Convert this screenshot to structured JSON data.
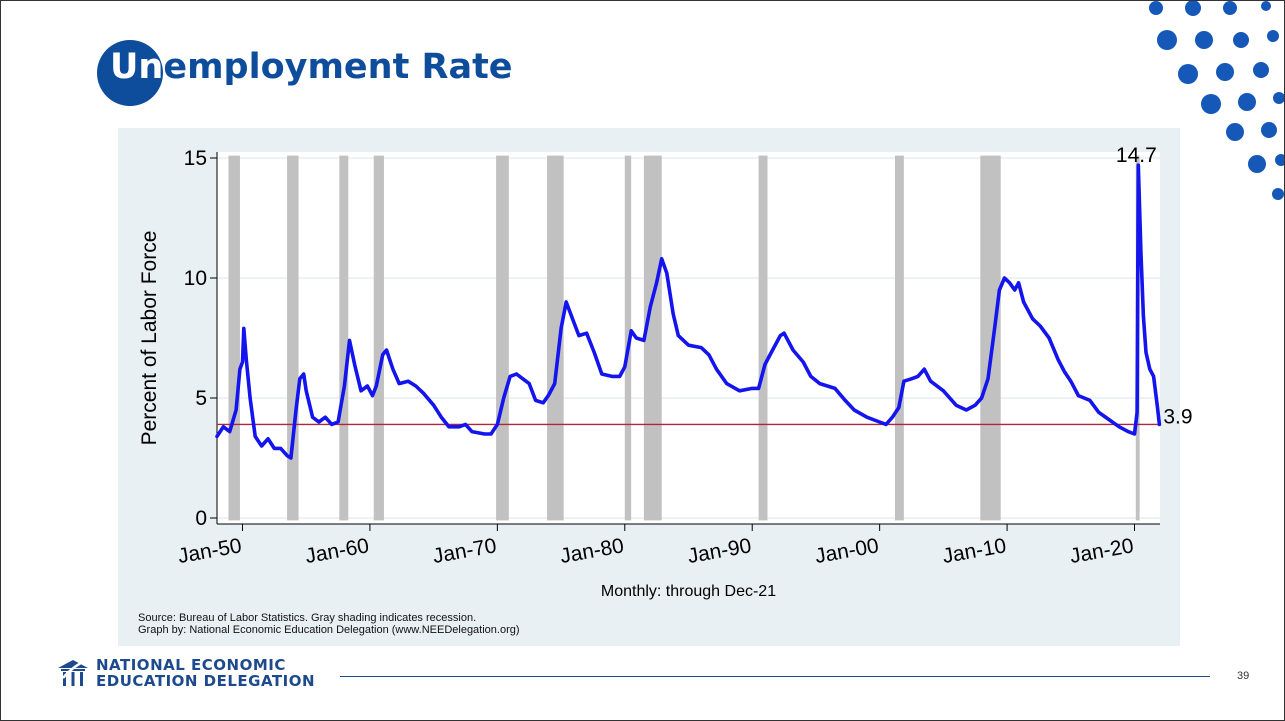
{
  "slide": {
    "title_first": "Un",
    "title_rest": "employment Rate",
    "page_number": "39",
    "source_line1": "Source: Bureau of Labor Statistics. Gray shading indicates recession.",
    "source_line2": "Graph by: National Economic Education Delegation (www.NEEDelegation.org)",
    "logo_line1": "NATIONAL ECONOMIC",
    "logo_line2": "EDUCATION DELEGATION",
    "colors": {
      "brand": "#0e4d9c",
      "dots": "#1558b8"
    }
  },
  "chart_data": {
    "type": "line",
    "ylabel": "Percent of Labor Force",
    "xlabel": "Monthly: through Dec-21",
    "ylim": [
      0,
      15
    ],
    "yticks": [
      0,
      5,
      10,
      15
    ],
    "xticks": [
      "Jan-50",
      "Jan-60",
      "Jan-70",
      "Jan-80",
      "Jan-90",
      "Jan-00",
      "Jan-10",
      "Jan-20"
    ],
    "xrange": [
      1948.0,
      2022.0
    ],
    "grid": true,
    "reference_line": {
      "value": 3.9,
      "color": "#b0243c"
    },
    "annotations": [
      {
        "text": "14.7",
        "x": 2020.3,
        "y": 14.7
      },
      {
        "text": "3.9",
        "x": 2021.95,
        "y": 3.9
      }
    ],
    "recessions": [
      [
        1948.9,
        1949.8
      ],
      [
        1953.5,
        1954.4
      ],
      [
        1957.6,
        1958.3
      ],
      [
        1960.3,
        1961.1
      ],
      [
        1969.9,
        1970.9
      ],
      [
        1973.9,
        1975.2
      ],
      [
        1980.0,
        1980.5
      ],
      [
        1981.5,
        1982.9
      ],
      [
        1990.5,
        1991.2
      ],
      [
        2001.2,
        2001.9
      ],
      [
        2007.9,
        2009.5
      ],
      [
        2020.1,
        2020.4
      ]
    ],
    "series": [
      {
        "color": "#1414ee",
        "points": [
          [
            1948.0,
            3.4
          ],
          [
            1948.5,
            3.8
          ],
          [
            1949.0,
            3.6
          ],
          [
            1949.5,
            4.5
          ],
          [
            1949.8,
            6.2
          ],
          [
            1950.0,
            6.5
          ],
          [
            1950.1,
            7.9
          ],
          [
            1950.3,
            6.6
          ],
          [
            1950.6,
            5.0
          ],
          [
            1951.0,
            3.4
          ],
          [
            1951.5,
            3.0
          ],
          [
            1952.0,
            3.3
          ],
          [
            1952.5,
            2.9
          ],
          [
            1953.0,
            2.9
          ],
          [
            1953.5,
            2.6
          ],
          [
            1953.8,
            2.5
          ],
          [
            1954.2,
            4.5
          ],
          [
            1954.5,
            5.8
          ],
          [
            1954.8,
            6.0
          ],
          [
            1955.0,
            5.3
          ],
          [
            1955.5,
            4.2
          ],
          [
            1956.0,
            4.0
          ],
          [
            1956.5,
            4.2
          ],
          [
            1957.0,
            3.9
          ],
          [
            1957.5,
            4.0
          ],
          [
            1958.0,
            5.5
          ],
          [
            1958.4,
            7.4
          ],
          [
            1958.8,
            6.4
          ],
          [
            1959.3,
            5.3
          ],
          [
            1959.8,
            5.5
          ],
          [
            1960.2,
            5.1
          ],
          [
            1960.5,
            5.5
          ],
          [
            1961.0,
            6.8
          ],
          [
            1961.3,
            7.0
          ],
          [
            1961.8,
            6.2
          ],
          [
            1962.3,
            5.6
          ],
          [
            1963.0,
            5.7
          ],
          [
            1963.6,
            5.5
          ],
          [
            1964.2,
            5.2
          ],
          [
            1965.0,
            4.7
          ],
          [
            1965.6,
            4.2
          ],
          [
            1966.2,
            3.8
          ],
          [
            1967.0,
            3.8
          ],
          [
            1967.5,
            3.9
          ],
          [
            1968.0,
            3.6
          ],
          [
            1969.0,
            3.5
          ],
          [
            1969.5,
            3.5
          ],
          [
            1970.0,
            3.9
          ],
          [
            1970.5,
            5.0
          ],
          [
            1971.0,
            5.9
          ],
          [
            1971.5,
            6.0
          ],
          [
            1972.0,
            5.8
          ],
          [
            1972.5,
            5.6
          ],
          [
            1973.0,
            4.9
          ],
          [
            1973.6,
            4.8
          ],
          [
            1974.0,
            5.1
          ],
          [
            1974.5,
            5.6
          ],
          [
            1975.0,
            7.9
          ],
          [
            1975.4,
            9.0
          ],
          [
            1975.9,
            8.3
          ],
          [
            1976.4,
            7.6
          ],
          [
            1977.0,
            7.7
          ],
          [
            1977.6,
            6.9
          ],
          [
            1978.2,
            6.0
          ],
          [
            1979.0,
            5.9
          ],
          [
            1979.6,
            5.9
          ],
          [
            1980.0,
            6.3
          ],
          [
            1980.5,
            7.8
          ],
          [
            1980.9,
            7.5
          ],
          [
            1981.5,
            7.4
          ],
          [
            1982.0,
            8.8
          ],
          [
            1982.5,
            9.8
          ],
          [
            1982.9,
            10.8
          ],
          [
            1983.3,
            10.2
          ],
          [
            1983.8,
            8.5
          ],
          [
            1984.2,
            7.6
          ],
          [
            1985.0,
            7.2
          ],
          [
            1986.0,
            7.1
          ],
          [
            1986.6,
            6.8
          ],
          [
            1987.2,
            6.2
          ],
          [
            1988.0,
            5.6
          ],
          [
            1989.0,
            5.3
          ],
          [
            1990.0,
            5.4
          ],
          [
            1990.5,
            5.4
          ],
          [
            1991.0,
            6.4
          ],
          [
            1991.6,
            7.0
          ],
          [
            1992.2,
            7.6
          ],
          [
            1992.5,
            7.7
          ],
          [
            1993.2,
            7.0
          ],
          [
            1994.0,
            6.5
          ],
          [
            1994.6,
            5.9
          ],
          [
            1995.3,
            5.6
          ],
          [
            1996.5,
            5.4
          ],
          [
            1997.3,
            4.9
          ],
          [
            1998.0,
            4.5
          ],
          [
            1999.0,
            4.2
          ],
          [
            2000.0,
            4.0
          ],
          [
            2000.5,
            3.9
          ],
          [
            2001.0,
            4.2
          ],
          [
            2001.5,
            4.6
          ],
          [
            2001.9,
            5.7
          ],
          [
            2002.5,
            5.8
          ],
          [
            2003.0,
            5.9
          ],
          [
            2003.5,
            6.2
          ],
          [
            2004.0,
            5.7
          ],
          [
            2005.0,
            5.3
          ],
          [
            2006.0,
            4.7
          ],
          [
            2006.8,
            4.5
          ],
          [
            2007.5,
            4.7
          ],
          [
            2008.0,
            5.0
          ],
          [
            2008.5,
            5.8
          ],
          [
            2009.0,
            7.8
          ],
          [
            2009.4,
            9.5
          ],
          [
            2009.8,
            10.0
          ],
          [
            2010.2,
            9.8
          ],
          [
            2010.6,
            9.5
          ],
          [
            2010.9,
            9.8
          ],
          [
            2011.3,
            9.0
          ],
          [
            2012.0,
            8.3
          ],
          [
            2012.6,
            8.0
          ],
          [
            2013.3,
            7.5
          ],
          [
            2014.0,
            6.6
          ],
          [
            2014.5,
            6.1
          ],
          [
            2015.0,
            5.7
          ],
          [
            2015.6,
            5.1
          ],
          [
            2016.5,
            4.9
          ],
          [
            2017.2,
            4.4
          ],
          [
            2018.0,
            4.1
          ],
          [
            2018.8,
            3.8
          ],
          [
            2019.5,
            3.6
          ],
          [
            2020.0,
            3.5
          ],
          [
            2020.2,
            4.4
          ],
          [
            2020.3,
            14.7
          ],
          [
            2020.5,
            11.1
          ],
          [
            2020.7,
            8.4
          ],
          [
            2020.9,
            6.9
          ],
          [
            2021.2,
            6.2
          ],
          [
            2021.5,
            5.9
          ],
          [
            2021.8,
            4.6
          ],
          [
            2021.95,
            3.9
          ]
        ]
      }
    ]
  }
}
